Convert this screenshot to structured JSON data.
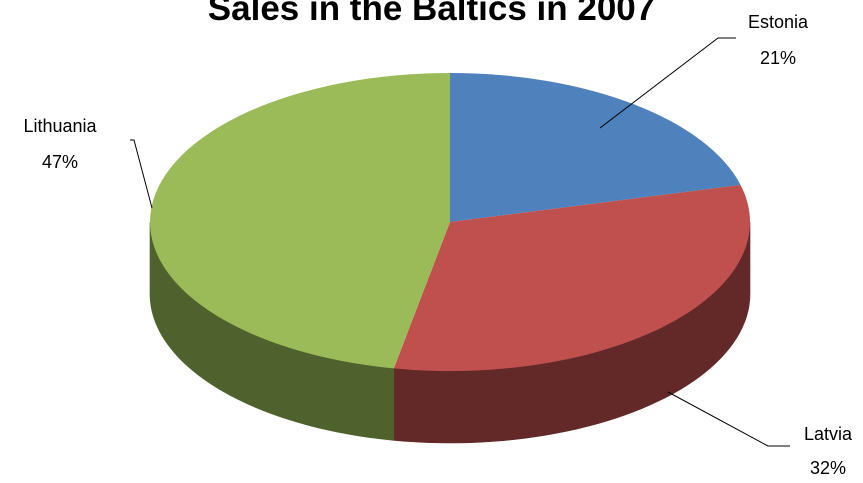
{
  "chart_data": {
    "type": "pie",
    "title": "Sales in the Baltics in 2007",
    "categories": [
      "Estonia",
      "Latvia",
      "Lithuania"
    ],
    "values": [
      21,
      32,
      47
    ],
    "data_labels": [
      "21%",
      "32%",
      "47%"
    ],
    "colors": {
      "Estonia": "#4f81bd",
      "Latvia": "#c0504d",
      "Lithuania": "#9bbb59"
    },
    "side_colors": {
      "Estonia": "#2e4f79",
      "Latvia": "#632828",
      "Lithuania": "#4f612d"
    },
    "style": "3d",
    "legend": "none"
  }
}
